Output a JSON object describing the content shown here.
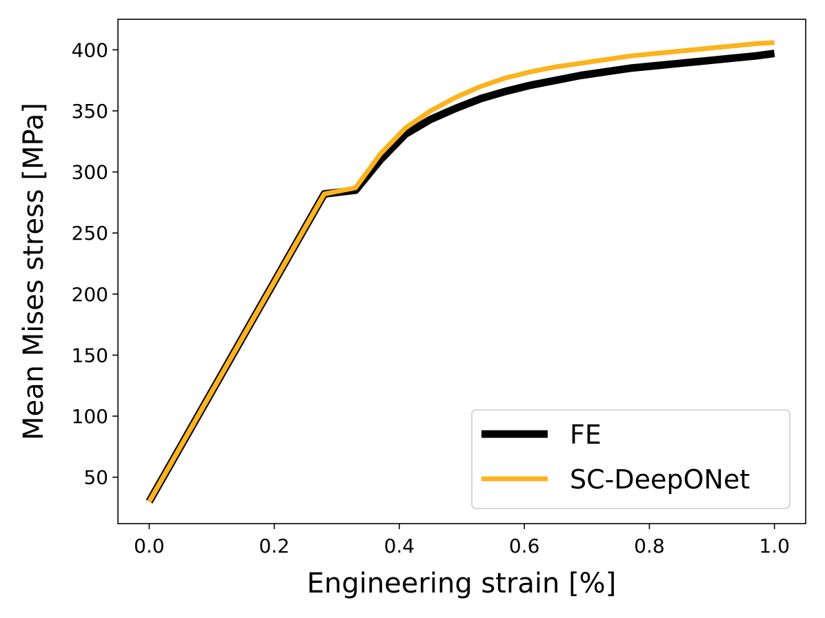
{
  "chart_data": {
    "type": "line",
    "xlabel": "Engineering strain [%]",
    "ylabel": "Mean Mises stress [MPa]",
    "xlim": [
      -0.05,
      1.05
    ],
    "ylim": [
      12,
      425
    ],
    "xticks": [
      0.0,
      0.2,
      0.4,
      0.6,
      0.8,
      1.0
    ],
    "xtick_labels": [
      "0.0",
      "0.2",
      "0.4",
      "0.6",
      "0.8",
      "1.0"
    ],
    "yticks": [
      50,
      100,
      150,
      200,
      250,
      300,
      350,
      400
    ],
    "ytick_labels": [
      "50",
      "100",
      "150",
      "200",
      "250",
      "300",
      "350",
      "400"
    ],
    "grid": false,
    "legend_position": "bottom-right",
    "series": [
      {
        "name": "FE",
        "color": "#000000",
        "x": [
          0.0,
          0.04,
          0.08,
          0.12,
          0.16,
          0.2,
          0.24,
          0.28,
          0.33,
          0.37,
          0.41,
          0.45,
          0.49,
          0.53,
          0.57,
          0.61,
          0.65,
          0.69,
          0.73,
          0.77,
          0.81,
          0.85,
          0.89,
          0.93,
          0.97,
          1.0
        ],
        "y": [
          30,
          66,
          102,
          138,
          174,
          210,
          246,
          282,
          285,
          310,
          331,
          343,
          352,
          360,
          366,
          371,
          375,
          379,
          382,
          385,
          387,
          389,
          391,
          393,
          395,
          397
        ]
      },
      {
        "name": "SC-DeepONet",
        "color": "#fbb31f",
        "x": [
          0.0,
          0.04,
          0.08,
          0.12,
          0.16,
          0.2,
          0.24,
          0.28,
          0.33,
          0.37,
          0.41,
          0.45,
          0.49,
          0.53,
          0.57,
          0.61,
          0.65,
          0.69,
          0.73,
          0.77,
          0.81,
          0.85,
          0.89,
          0.93,
          0.97,
          1.0
        ],
        "y": [
          30,
          66,
          102,
          138,
          174,
          210,
          246,
          282,
          287,
          315,
          336,
          350,
          361,
          370,
          377,
          382,
          386,
          389,
          392,
          395,
          397,
          399,
          401,
          403,
          405,
          406
        ]
      }
    ]
  }
}
